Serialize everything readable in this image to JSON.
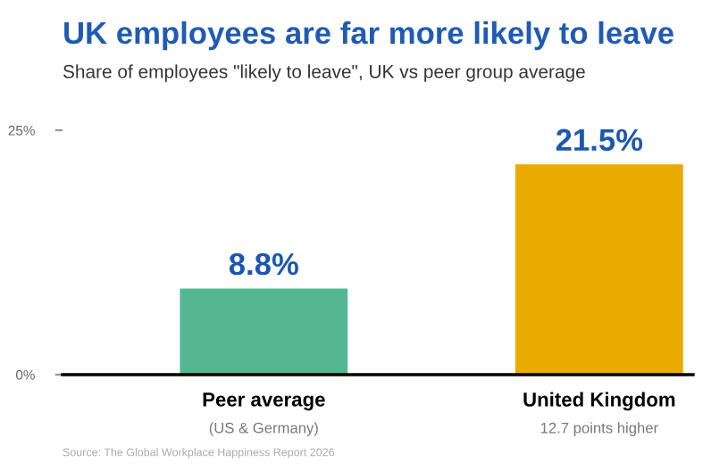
{
  "chart_data": {
    "type": "bar",
    "title": "UK employees are far more likely to leave",
    "subtitle": "Share of employees \"likely to leave\", UK vs peer group average",
    "categories": [
      "Peer average",
      "United Kingdom"
    ],
    "values": [
      8.8,
      21.5
    ],
    "value_labels": [
      "8.8%",
      "21.5%"
    ],
    "colors": [
      "#55b692",
      "#e9ab00"
    ],
    "ylim": [
      0,
      25
    ],
    "yticks": [
      {
        "value": 0,
        "label": "0%"
      },
      {
        "value": 25,
        "label": "25%"
      }
    ],
    "grid": false,
    "annotations": [
      "(US & Germany)",
      "12.7 points higher",
      "Source: The Global Workplace Happiness Report 2026"
    ]
  }
}
